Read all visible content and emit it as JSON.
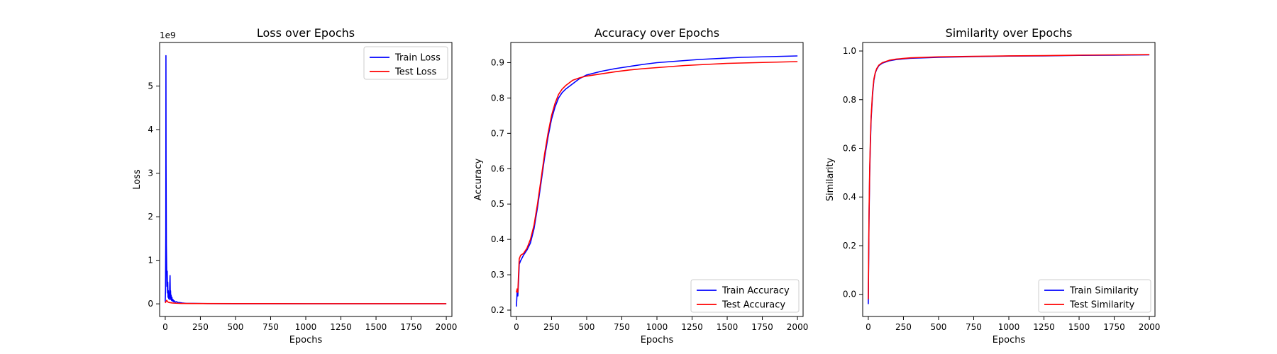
{
  "chart_data": [
    {
      "type": "line",
      "title": "Loss over Epochs",
      "xlabel": "Epochs",
      "ylabel": "Loss",
      "y_offset_label": "1e9",
      "xlim": [
        -40,
        2040
      ],
      "ylim": [
        -0.29,
        6.0
      ],
      "xticks": [
        0,
        250,
        500,
        750,
        1000,
        1250,
        1500,
        1750,
        2000
      ],
      "yticks": [
        0,
        1,
        2,
        3,
        4,
        5
      ],
      "legend_position": "upper right",
      "series": [
        {
          "name": "Train Loss",
          "color": "#0000ff",
          "x": [
            0,
            2,
            4,
            5,
            6,
            8,
            10,
            12,
            14,
            16,
            18,
            20,
            22,
            25,
            28,
            30,
            32,
            34,
            36,
            38,
            40,
            42,
            45,
            48,
            50,
            55,
            60,
            65,
            70,
            80,
            90,
            100,
            120,
            150,
            200,
            300,
            500,
            1000,
            1500,
            2000
          ],
          "y": [
            0.05,
            0.3,
            1.6,
            5.7,
            3.2,
            1.35,
            0.85,
            0.4,
            0.75,
            0.25,
            0.5,
            0.15,
            0.3,
            0.12,
            0.2,
            0.1,
            0.45,
            0.65,
            0.15,
            0.3,
            0.1,
            0.2,
            0.08,
            0.15,
            0.06,
            0.1,
            0.05,
            0.07,
            0.04,
            0.05,
            0.03,
            0.03,
            0.02,
            0.01,
            0.01,
            0.005,
            0.004,
            0.003,
            0.003,
            0.003
          ]
        },
        {
          "name": "Test Loss",
          "color": "#ff0000",
          "x": [
            0,
            5,
            10,
            20,
            30,
            50,
            100,
            200,
            500,
            1000,
            1500,
            2000
          ],
          "y": [
            0.02,
            0.05,
            0.08,
            0.04,
            0.03,
            0.02,
            0.01,
            0.008,
            0.005,
            0.004,
            0.004,
            0.004
          ]
        }
      ]
    },
    {
      "type": "line",
      "title": "Accuracy over Epochs",
      "xlabel": "Epochs",
      "ylabel": "Accuracy",
      "xlim": [
        -40,
        2040
      ],
      "ylim": [
        0.182,
        0.957
      ],
      "xticks": [
        0,
        250,
        500,
        750,
        1000,
        1250,
        1500,
        1750,
        2000
      ],
      "yticks": [
        0.2,
        0.3,
        0.4,
        0.5,
        0.6,
        0.7,
        0.8,
        0.9
      ],
      "tick_labels_y": [
        "0.2",
        "0.3",
        "0.4",
        "0.5",
        "0.6",
        "0.7",
        "0.8",
        "0.9"
      ],
      "legend_position": "lower right",
      "series": [
        {
          "name": "Train Accuracy",
          "color": "#0000ff",
          "x": [
            0,
            5,
            10,
            15,
            20,
            30,
            50,
            75,
            100,
            125,
            150,
            175,
            200,
            225,
            250,
            275,
            300,
            325,
            350,
            400,
            450,
            500,
            600,
            700,
            800,
            900,
            1000,
            1100,
            1200,
            1300,
            1400,
            1500,
            1600,
            1700,
            1800,
            1900,
            2000
          ],
          "y": [
            0.21,
            0.25,
            0.24,
            0.28,
            0.33,
            0.34,
            0.355,
            0.37,
            0.39,
            0.43,
            0.49,
            0.56,
            0.63,
            0.69,
            0.74,
            0.775,
            0.8,
            0.815,
            0.825,
            0.84,
            0.855,
            0.865,
            0.875,
            0.883,
            0.889,
            0.895,
            0.9,
            0.903,
            0.906,
            0.909,
            0.911,
            0.913,
            0.915,
            0.916,
            0.917,
            0.918,
            0.919
          ]
        },
        {
          "name": "Test Accuracy",
          "color": "#ff0000",
          "x": [
            0,
            5,
            10,
            15,
            20,
            30,
            50,
            75,
            100,
            125,
            150,
            175,
            200,
            225,
            250,
            275,
            300,
            325,
            350,
            400,
            450,
            500,
            600,
            700,
            800,
            900,
            1000,
            1100,
            1200,
            1300,
            1400,
            1500,
            1600,
            1700,
            1800,
            1900,
            2000
          ],
          "y": [
            0.25,
            0.26,
            0.25,
            0.3,
            0.345,
            0.355,
            0.36,
            0.375,
            0.4,
            0.44,
            0.5,
            0.57,
            0.64,
            0.7,
            0.75,
            0.785,
            0.81,
            0.825,
            0.835,
            0.85,
            0.857,
            0.862,
            0.868,
            0.874,
            0.879,
            0.883,
            0.886,
            0.889,
            0.892,
            0.894,
            0.896,
            0.898,
            0.899,
            0.9,
            0.901,
            0.902,
            0.903
          ]
        }
      ]
    },
    {
      "type": "line",
      "title": "Similarity over Epochs",
      "xlabel": "Epochs",
      "ylabel": "Similarity",
      "xlim": [
        -40,
        2040
      ],
      "ylim": [
        -0.091,
        1.035
      ],
      "xticks": [
        0,
        250,
        500,
        750,
        1000,
        1250,
        1500,
        1750,
        2000
      ],
      "yticks": [
        0.0,
        0.2,
        0.4,
        0.6,
        0.8,
        1.0
      ],
      "tick_labels_y": [
        "0.0",
        "0.2",
        "0.4",
        "0.6",
        "0.8",
        "1.0"
      ],
      "legend_position": "lower right",
      "series": [
        {
          "name": "Train Similarity",
          "color": "#0000ff",
          "x": [
            0,
            2,
            5,
            10,
            15,
            20,
            30,
            40,
            50,
            60,
            75,
            100,
            150,
            200,
            300,
            500,
            750,
            1000,
            1250,
            1500,
            1750,
            2000
          ],
          "y": [
            -0.04,
            0.1,
            0.3,
            0.5,
            0.62,
            0.72,
            0.82,
            0.88,
            0.91,
            0.925,
            0.94,
            0.95,
            0.96,
            0.965,
            0.97,
            0.974,
            0.977,
            0.979,
            0.98,
            0.982,
            0.983,
            0.984
          ]
        },
        {
          "name": "Test Similarity",
          "color": "#ff0000",
          "x": [
            0,
            2,
            5,
            10,
            15,
            20,
            30,
            40,
            50,
            60,
            75,
            100,
            150,
            200,
            300,
            500,
            750,
            1000,
            1250,
            1500,
            1750,
            2000
          ],
          "y": [
            -0.02,
            0.12,
            0.32,
            0.52,
            0.64,
            0.73,
            0.83,
            0.885,
            0.912,
            0.928,
            0.942,
            0.952,
            0.962,
            0.967,
            0.972,
            0.976,
            0.978,
            0.98,
            0.981,
            0.983,
            0.984,
            0.985
          ]
        }
      ]
    }
  ]
}
